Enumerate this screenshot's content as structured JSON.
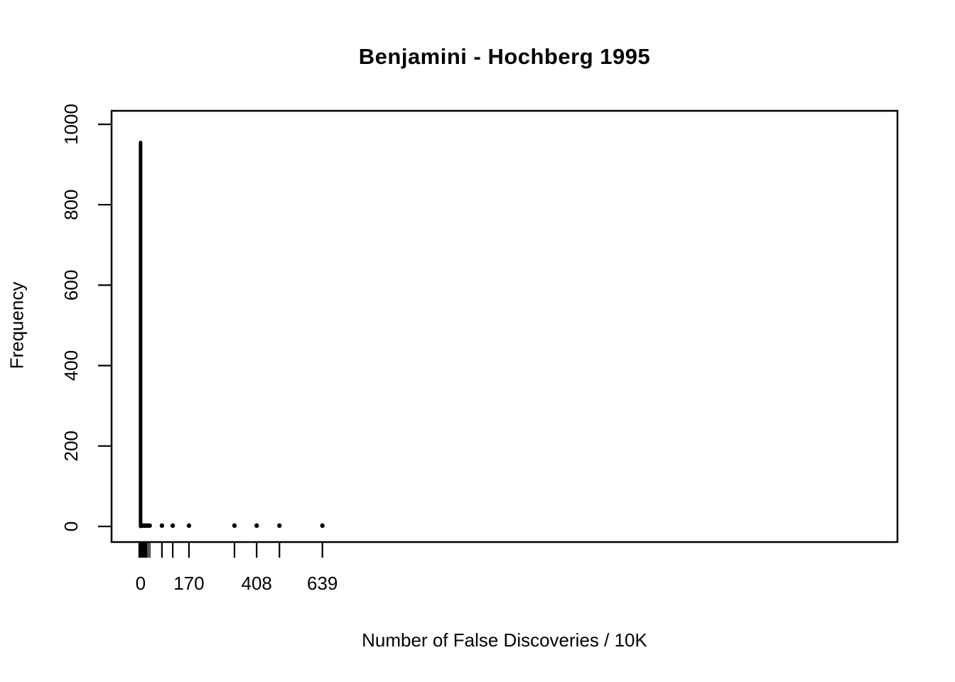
{
  "chart_data": {
    "type": "bar",
    "title": "Benjamini - Hochberg 1995",
    "xlabel": "Number of False Discoveries / 10K",
    "ylabel": "Frequency",
    "x_tick_values": [
      0,
      170,
      408,
      639
    ],
    "x_tick_labels": [
      "0",
      "170",
      "408",
      "639"
    ],
    "y_tick_values": [
      0,
      200,
      400,
      600,
      800,
      1000
    ],
    "y_tick_labels": [
      "0",
      "200",
      "400",
      "600",
      "800",
      "1000"
    ],
    "xlim": [
      -102,
      2660
    ],
    "ylim": [
      0,
      1000
    ],
    "grid": false,
    "legend": "none",
    "spike": {
      "value": 0,
      "frequency": 955
    },
    "points": [
      {
        "value": 3,
        "frequency": 2
      },
      {
        "value": 8,
        "frequency": 2
      },
      {
        "value": 14,
        "frequency": 2
      },
      {
        "value": 20,
        "frequency": 2
      },
      {
        "value": 25,
        "frequency": 2
      },
      {
        "value": 32,
        "frequency": 2
      },
      {
        "value": 75,
        "frequency": 2
      },
      {
        "value": 113,
        "frequency": 2
      },
      {
        "value": 170,
        "frequency": 2
      },
      {
        "value": 330,
        "frequency": 2
      },
      {
        "value": 408,
        "frequency": 2
      },
      {
        "value": 488,
        "frequency": 2
      },
      {
        "value": 639,
        "frequency": 2
      }
    ],
    "rug": {
      "block": {
        "from": 0,
        "to": 18
      },
      "marks": [
        23,
        28,
        33,
        75,
        113,
        170,
        330,
        408,
        488,
        639
      ]
    },
    "colors": {
      "foreground": "#000000",
      "background": "#ffffff"
    }
  }
}
